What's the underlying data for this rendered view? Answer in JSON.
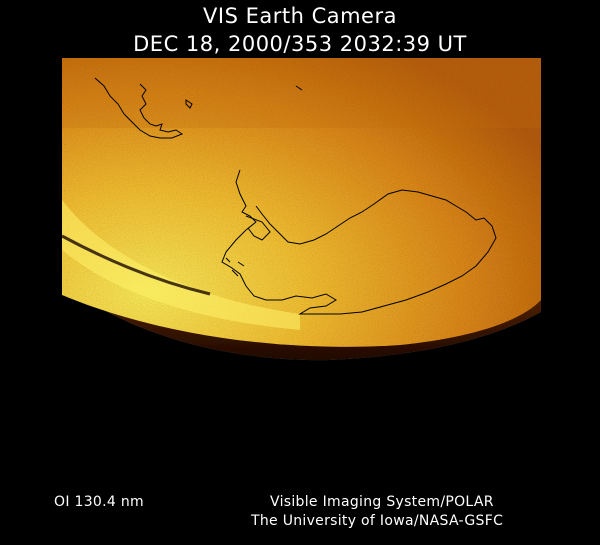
{
  "header": {
    "title": "VIS Earth Camera",
    "timestamp": "DEC 18, 2000/353 2032:39 UT"
  },
  "footer": {
    "wavelength": "OI  130.4 nm",
    "instrument": "Visible Imaging System/POLAR",
    "institution": "The University of Iowa/NASA-GSFC"
  },
  "colors": {
    "background": "#000000",
    "glow_bright": "#ffe64a",
    "glow_mid": "#f0a020",
    "glow_dark": "#8a3c06",
    "limb": "#3a1400",
    "coastline": "#000000",
    "text": "#ffffff"
  }
}
